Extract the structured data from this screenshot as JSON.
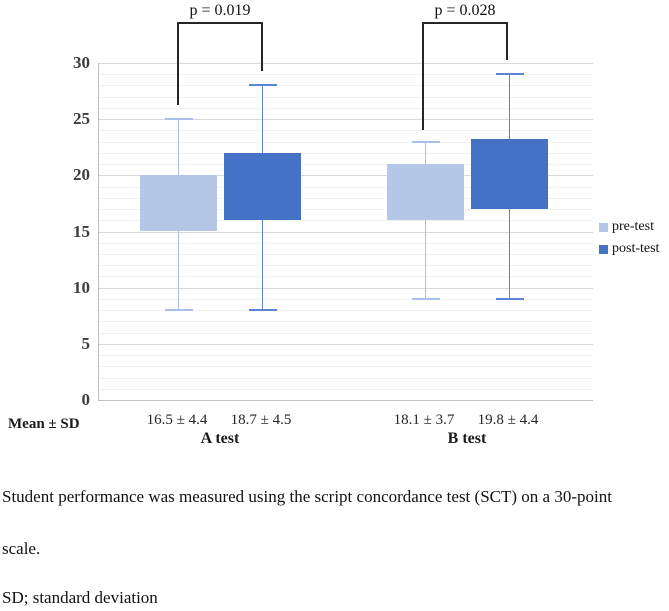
{
  "chart_data": {
    "type": "boxplot",
    "title": "",
    "ylabel": "",
    "xlabel": "",
    "ylim": [
      0,
      30
    ],
    "yticks": [
      0,
      5,
      10,
      15,
      20,
      25,
      30
    ],
    "grid": {
      "minor_step": 1,
      "major_step": 5
    },
    "legend_position": "right",
    "legend": [
      {
        "label": "pre-test",
        "color": "#b4c7e7"
      },
      {
        "label": "post-test",
        "color": "#4472c4"
      }
    ],
    "row_label": "Mean ± SD",
    "groups": [
      {
        "label": "A test",
        "p_value": "p = 0.019",
        "boxes": [
          {
            "series": "pre-test",
            "whisker_low": 8,
            "box_low": 15,
            "box_high": 20,
            "whisker_high": 25,
            "mean_sd": "16.5 ± 4.4"
          },
          {
            "series": "post-test",
            "whisker_low": 8,
            "box_low": 16,
            "box_high": 22,
            "whisker_high": 28,
            "mean_sd": "18.7 ± 4.5"
          }
        ]
      },
      {
        "label": "B test",
        "p_value": "p = 0.028",
        "boxes": [
          {
            "series": "pre-test",
            "whisker_low": 9,
            "box_low": 16,
            "box_high": 21,
            "whisker_high": 23,
            "mean_sd": "18.1 ± 3.7"
          },
          {
            "series": "post-test",
            "whisker_low": 9,
            "box_low": 17,
            "box_high": 23.2,
            "whisker_high": 29,
            "mean_sd": "19.8 ± 4.4"
          }
        ]
      }
    ]
  },
  "colors": {
    "pre_test_fill": "#b4c7e7",
    "post_test_fill": "#4472c4",
    "pre_test_whisker": "#a9c0e8",
    "post_test_whisker": "#5b84d6",
    "bracket": "#262626"
  },
  "caption": {
    "lines": [
      "Student performance was measured using the script concordance test (SCT) on a 30-point",
      "scale.",
      "SD; standard deviation"
    ]
  }
}
